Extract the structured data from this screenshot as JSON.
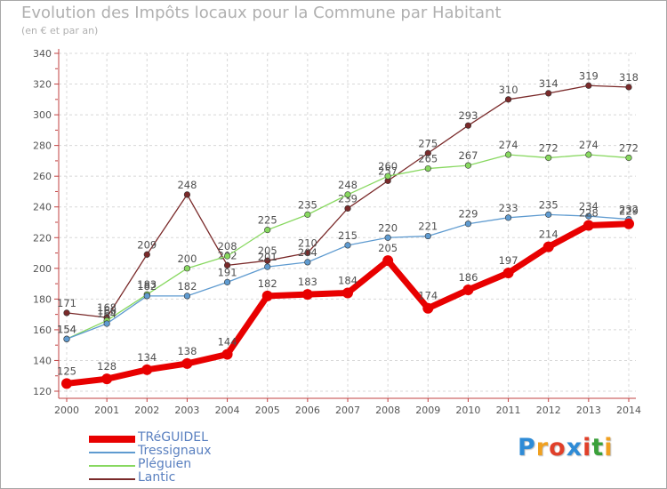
{
  "header": {
    "title": "Evolution des Impôts locaux pour la Commune par Habitant",
    "subtitle": "(en € et par an)"
  },
  "logo": {
    "text": "Proxiti",
    "letters": [
      "P",
      "r",
      "o",
      "x",
      "i",
      "t",
      "i"
    ],
    "colors": [
      "#2e8bd6",
      "#f0a020",
      "#e0402a",
      "#2e8bd6",
      "#e0402a",
      "#3aa03a",
      "#f0a020"
    ]
  },
  "chart_data": {
    "type": "line",
    "title": "Evolution des Impôts locaux pour la Commune par Habitant",
    "subtitle": "(en € et par an)",
    "xlabel": "",
    "ylabel": "",
    "x": [
      2000,
      2001,
      2002,
      2003,
      2004,
      2005,
      2006,
      2007,
      2008,
      2009,
      2010,
      2011,
      2012,
      2013,
      2014
    ],
    "ylim": [
      120,
      340
    ],
    "yticks": [
      120,
      140,
      160,
      180,
      200,
      220,
      240,
      260,
      280,
      300,
      320,
      340
    ],
    "grid": true,
    "legend_position": "bottom-left",
    "series": [
      {
        "name": "Lantic",
        "color": "#7a2a2a",
        "values": [
          171,
          168,
          209,
          248,
          202,
          205,
          210,
          239,
          257,
          275,
          293,
          310,
          314,
          319,
          318
        ]
      },
      {
        "name": "Pléguien",
        "color": "#88d860",
        "values": [
          154,
          166,
          183,
          200,
          208,
          225,
          235,
          248,
          260,
          265,
          267,
          274,
          272,
          274,
          272
        ]
      },
      {
        "name": "Tressignaux",
        "color": "#5f9bd0",
        "values": [
          154,
          164,
          182,
          182,
          191,
          201,
          204,
          215,
          220,
          221,
          229,
          233,
          235,
          234,
          232
        ]
      },
      {
        "name": "TRéGUIDEL",
        "color": "#e80000",
        "values": [
          125,
          128,
          134,
          138,
          144,
          182,
          183,
          184,
          205,
          174,
          186,
          197,
          214,
          228,
          229
        ]
      }
    ]
  }
}
